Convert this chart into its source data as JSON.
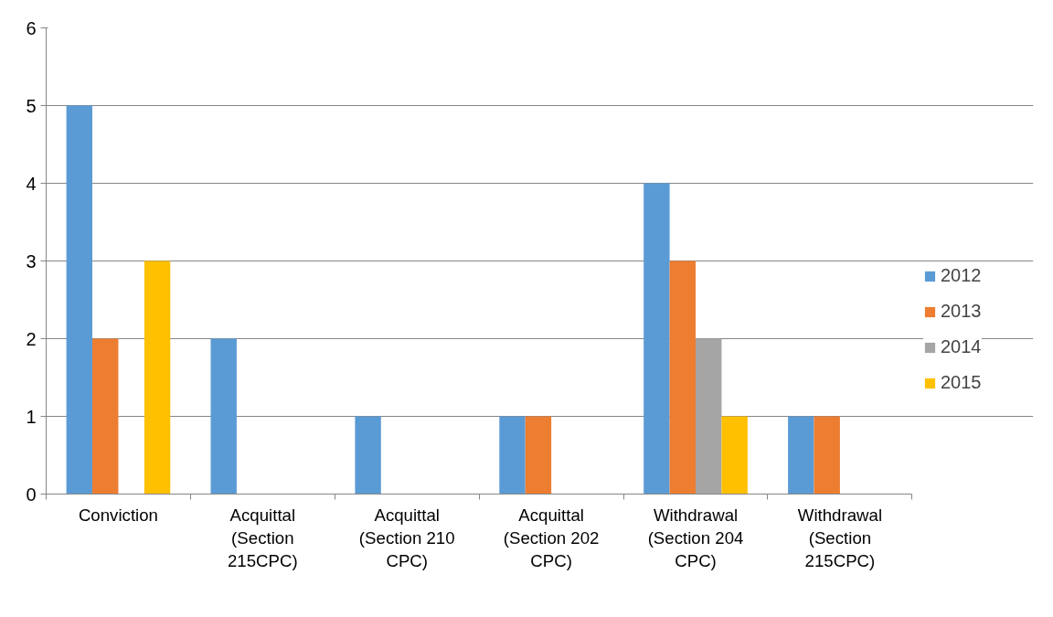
{
  "chart_data": {
    "type": "bar",
    "categories": [
      "Conviction",
      "Acquittal (Section 215CPC)",
      "Acquittal (Section 210 CPC)",
      "Acquittal (Section 202 CPC)",
      "Withdrawal (Section 204 CPC)",
      "Withdrawal (Section 215CPC)"
    ],
    "series": [
      {
        "name": "2012",
        "color": "#5b9bd5",
        "values": [
          5,
          2,
          1,
          1,
          4,
          1
        ]
      },
      {
        "name": "2013",
        "color": "#ed7d31",
        "values": [
          2,
          0,
          0,
          1,
          3,
          1
        ]
      },
      {
        "name": "2014",
        "color": "#a5a5a5",
        "values": [
          0,
          0,
          0,
          0,
          2,
          0
        ]
      },
      {
        "name": "2015",
        "color": "#ffc000",
        "values": [
          3,
          0,
          0,
          0,
          1,
          0
        ]
      }
    ],
    "ylim": [
      0,
      6
    ],
    "yticks": [
      0,
      1,
      2,
      3,
      4,
      5,
      6
    ],
    "grid": "y",
    "legend": "right"
  }
}
